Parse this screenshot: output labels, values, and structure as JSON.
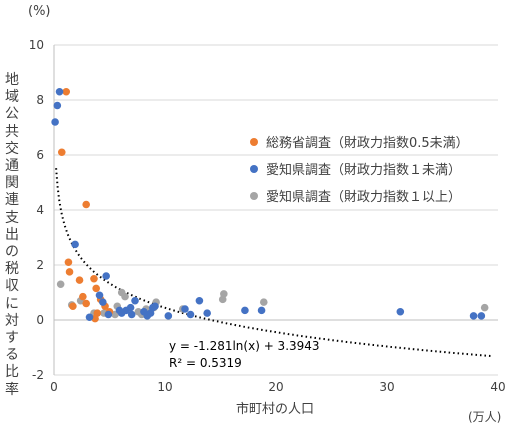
{
  "chart_data": {
    "type": "scatter",
    "ylabel": "地域公共交通関連支出の税収に対する比率",
    "xlabel": "市町村の人口",
    "y_unit": "(%)",
    "x_unit": "(万人)",
    "xlim": [
      0,
      40
    ],
    "ylim": [
      -2,
      10
    ],
    "x_ticks": [
      "0",
      "10",
      "20",
      "30",
      "40"
    ],
    "y_ticks": [
      "-2",
      "0",
      "2",
      "4",
      "6",
      "8",
      "10"
    ],
    "grid": "horizontal",
    "legend_position": "center-right",
    "series": [
      {
        "name": "総務省調査（財政力指数0.5未満）",
        "color": "#ED7D31",
        "points": [
          [
            1.1,
            8.3
          ],
          [
            0.7,
            6.1
          ],
          [
            2.9,
            4.2
          ],
          [
            1.3,
            2.1
          ],
          [
            1.4,
            1.75
          ],
          [
            2.3,
            1.45
          ],
          [
            3.6,
            1.5
          ],
          [
            3.8,
            1.15
          ],
          [
            2.6,
            0.85
          ],
          [
            2.9,
            0.6
          ],
          [
            4.2,
            0.75
          ],
          [
            4.6,
            0.5
          ],
          [
            1.7,
            0.5
          ],
          [
            3.9,
            0.25
          ],
          [
            3.7,
            0.05
          ],
          [
            5.0,
            0.3
          ]
        ]
      },
      {
        "name": "愛知県調査（財政力指数１未満）",
        "color": "#4472C4",
        "points": [
          [
            0.5,
            8.3
          ],
          [
            0.3,
            7.8
          ],
          [
            0.1,
            7.2
          ],
          [
            1.9,
            2.75
          ],
          [
            4.7,
            1.6
          ],
          [
            4.1,
            0.9
          ],
          [
            4.4,
            0.65
          ],
          [
            3.2,
            0.1
          ],
          [
            6.1,
            0.25
          ],
          [
            6.5,
            0.35
          ],
          [
            7.0,
            0.2
          ],
          [
            7.3,
            0.7
          ],
          [
            8.1,
            0.3
          ],
          [
            8.4,
            0.15
          ],
          [
            8.7,
            0.25
          ],
          [
            9.1,
            0.5
          ],
          [
            10.3,
            0.15
          ],
          [
            11.8,
            0.4
          ],
          [
            12.3,
            0.2
          ],
          [
            13.1,
            0.7
          ],
          [
            13.8,
            0.25
          ],
          [
            17.2,
            0.35
          ],
          [
            18.7,
            0.35
          ],
          [
            31.2,
            0.3
          ],
          [
            37.8,
            0.15
          ],
          [
            38.5,
            0.15
          ],
          [
            6.9,
            0.45
          ],
          [
            5.9,
            0.35
          ],
          [
            4.9,
            0.2
          ],
          [
            8.9,
            0.45
          ]
        ]
      },
      {
        "name": "愛知県調査（財政力指数１以上）",
        "color": "#A5A5A5",
        "points": [
          [
            0.6,
            1.3
          ],
          [
            1.6,
            0.55
          ],
          [
            2.4,
            0.7
          ],
          [
            3.6,
            0.25
          ],
          [
            4.5,
            0.25
          ],
          [
            5.7,
            0.5
          ],
          [
            6.1,
            1.0
          ],
          [
            6.4,
            0.85
          ],
          [
            7.6,
            0.3
          ],
          [
            8.3,
            0.4
          ],
          [
            9.0,
            0.45
          ],
          [
            9.2,
            0.65
          ],
          [
            11.6,
            0.4
          ],
          [
            15.2,
            0.75
          ],
          [
            15.3,
            0.95
          ],
          [
            18.9,
            0.65
          ],
          [
            38.8,
            0.45
          ],
          [
            7.9,
            0.2
          ],
          [
            5.5,
            0.2
          ]
        ]
      }
    ],
    "trendline": {
      "type": "logarithmic",
      "a": -1.281,
      "b": 3.3943,
      "equation": "y = -1.281ln(x) + 3.3943",
      "r2": "R² = 0.5319"
    }
  }
}
